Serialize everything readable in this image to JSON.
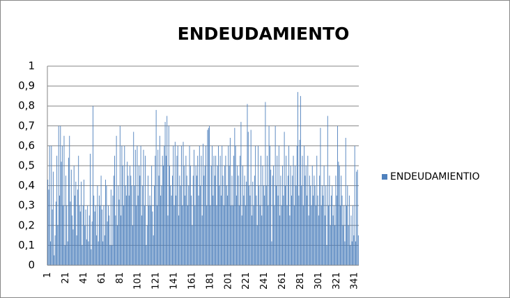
{
  "chart_data": {
    "type": "bar",
    "title": "ENDEUDAMIENTO",
    "categories": [
      "1",
      null,
      null,
      null,
      null,
      null,
      null,
      null,
      null,
      null,
      null,
      null,
      null,
      null,
      null,
      null,
      null,
      null,
      null,
      null,
      "21",
      null,
      null,
      null,
      null,
      null,
      null,
      null,
      null,
      null,
      null,
      null,
      null,
      null,
      null,
      null,
      null,
      null,
      null,
      null,
      "41",
      null,
      null,
      null,
      null,
      null,
      null,
      null,
      null,
      null,
      null,
      null,
      null,
      null,
      null,
      null,
      null,
      null,
      null,
      null,
      "61",
      null,
      null,
      null,
      null,
      null,
      null,
      null,
      null,
      null,
      null,
      null,
      null,
      null,
      null,
      null,
      null,
      null,
      null,
      null,
      "81",
      null,
      null,
      null,
      null,
      null,
      null,
      null,
      null,
      null,
      null,
      null,
      null,
      null,
      null,
      null,
      null,
      null,
      null,
      null,
      "101",
      null,
      null,
      null,
      null,
      null,
      null,
      null,
      null,
      null,
      null,
      null,
      null,
      null,
      null,
      null,
      null,
      null,
      null,
      null,
      "121",
      null,
      null,
      null,
      null,
      null,
      null,
      null,
      null,
      null,
      null,
      null,
      null,
      null,
      null,
      null,
      null,
      null,
      null,
      null,
      "141",
      null,
      null,
      null,
      null,
      null,
      null,
      null,
      null,
      null,
      null,
      null,
      null,
      null,
      null,
      null,
      null,
      null,
      null,
      null,
      "161",
      null,
      null,
      null,
      null,
      null,
      null,
      null,
      null,
      null,
      null,
      null,
      null,
      null,
      null,
      null,
      null,
      null,
      null,
      null,
      "181",
      null,
      null,
      null,
      null,
      null,
      null,
      null,
      null,
      null,
      null,
      null,
      null,
      null,
      null,
      null,
      null,
      null,
      null,
      null,
      "201",
      null,
      null,
      null,
      null,
      null,
      null,
      null,
      null,
      null,
      null,
      null,
      null,
      null,
      null,
      null,
      null,
      null,
      null,
      null,
      "221",
      null,
      null,
      null,
      null,
      null,
      null,
      null,
      null,
      null,
      null,
      null,
      null,
      null,
      null,
      null,
      null,
      null,
      null,
      null,
      "241",
      null,
      null,
      null,
      null,
      null,
      null,
      null,
      null,
      null,
      null,
      null,
      null,
      null,
      null,
      null,
      null,
      null,
      null,
      null,
      "261",
      null,
      null,
      null,
      null,
      null,
      null,
      null,
      null,
      null,
      null,
      null,
      null,
      null,
      null,
      null,
      null,
      null,
      null,
      null,
      "281",
      null,
      null,
      null,
      null,
      null,
      null,
      null,
      null,
      null,
      null,
      null,
      null,
      null,
      null,
      null,
      null,
      null,
      null,
      null,
      "301",
      null,
      null,
      null,
      null,
      null,
      null,
      null,
      null,
      null,
      null,
      null,
      null,
      null,
      null,
      null,
      null,
      null,
      null,
      null,
      "321",
      null,
      null,
      null,
      null,
      null,
      null,
      null,
      null,
      null,
      null,
      null,
      null,
      null,
      null,
      null,
      null,
      null,
      null,
      null,
      "341",
      null,
      null,
      null,
      null
    ],
    "series": [
      {
        "name": "ENDEUDAMIENTIO",
        "color": "#4f81bd",
        "values": [
          0.43,
          0.38,
          0.6,
          0.12,
          0.6,
          0.28,
          0.47,
          0.05,
          0.15,
          0.32,
          0.55,
          0.2,
          0.7,
          0.35,
          0.7,
          0.52,
          0.6,
          0.3,
          0.65,
          0.1,
          0.45,
          0.3,
          0.12,
          0.54,
          0.65,
          0.32,
          0.48,
          0.25,
          0.18,
          0.5,
          0.35,
          0.42,
          0.15,
          0.38,
          0.55,
          0.3,
          0.27,
          0.42,
          0.1,
          0.3,
          0.43,
          0.2,
          0.28,
          0.13,
          0.3,
          0.12,
          0.25,
          0.56,
          0.08,
          0.22,
          0.8,
          0.35,
          0.27,
          0.3,
          0.15,
          0.4,
          0.12,
          0.35,
          0.3,
          0.45,
          0.28,
          0.12,
          0.3,
          0.15,
          0.43,
          0.4,
          0.22,
          0.3,
          0.25,
          0.1,
          0.38,
          0.1,
          0.35,
          0.45,
          0.55,
          0.25,
          0.65,
          0.2,
          0.4,
          0.33,
          0.7,
          0.25,
          0.6,
          0.5,
          0.3,
          0.6,
          0.4,
          0.35,
          0.52,
          0.45,
          0.35,
          0.5,
          0.45,
          0.4,
          0.2,
          0.67,
          0.4,
          0.58,
          0.3,
          0.6,
          0.35,
          0.5,
          0.45,
          0.6,
          0.25,
          0.4,
          0.58,
          0.3,
          0.55,
          0.1,
          0.2,
          0.45,
          0.3,
          0.35,
          0.3,
          0.5,
          0.27,
          0.15,
          0.4,
          0.55,
          0.78,
          0.3,
          0.58,
          0.45,
          0.65,
          0.35,
          0.4,
          0.55,
          0.5,
          0.6,
          0.72,
          0.55,
          0.75,
          0.25,
          0.7,
          0.5,
          0.4,
          0.35,
          0.45,
          0.6,
          0.3,
          0.62,
          0.35,
          0.55,
          0.6,
          0.25,
          0.45,
          0.4,
          0.6,
          0.3,
          0.62,
          0.5,
          0.35,
          0.55,
          0.45,
          0.3,
          0.4,
          0.6,
          0.5,
          0.35,
          0.2,
          0.45,
          0.58,
          0.3,
          0.5,
          0.45,
          0.55,
          0.35,
          0.6,
          0.4,
          0.55,
          0.25,
          0.61,
          0.45,
          0.5,
          0.6,
          0.3,
          0.68,
          0.69,
          0.7,
          0.3,
          0.5,
          0.6,
          0.35,
          0.55,
          0.45,
          0.55,
          0.3,
          0.5,
          0.6,
          0.4,
          0.55,
          0.35,
          0.6,
          0.45,
          0.3,
          0.5,
          0.55,
          0.4,
          0.35,
          0.6,
          0.5,
          0.64,
          0.3,
          0.45,
          0.3,
          0.55,
          0.69,
          0.6,
          0.35,
          0.5,
          0.45,
          0.3,
          0.55,
          0.72,
          0.25,
          0.5,
          0.35,
          0.45,
          0.3,
          0.42,
          0.81,
          0.67,
          0.4,
          0.35,
          0.68,
          0.25,
          0.42,
          0.3,
          0.45,
          0.6,
          0.35,
          0.2,
          0.6,
          0.4,
          0.3,
          0.55,
          0.25,
          0.5,
          0.4,
          0.35,
          0.82,
          0.4,
          0.55,
          0.3,
          0.7,
          0.6,
          0.48,
          0.12,
          0.45,
          0.5,
          0.3,
          0.7,
          0.4,
          0.55,
          0.35,
          0.6,
          0.25,
          0.45,
          0.3,
          0.5,
          0.35,
          0.67,
          0.4,
          0.55,
          0.3,
          0.45,
          0.6,
          0.25,
          0.5,
          0.35,
          0.45,
          0.55,
          0.3,
          0.5,
          0.4,
          0.6,
          0.87,
          0.35,
          0.63,
          0.85,
          0.4,
          0.55,
          0.3,
          0.6,
          0.45,
          0.5,
          0.35,
          0.55,
          0.25,
          0.45,
          0.4,
          0.3,
          0.5,
          0.35,
          0.45,
          0.4,
          0.3,
          0.55,
          0.35,
          0.25,
          0.45,
          0.69,
          0.3,
          0.4,
          0.35,
          0.5,
          0.25,
          0.4,
          0.1,
          0.75,
          0.3,
          0.45,
          0.2,
          0.35,
          0.4,
          0.25,
          0.3,
          0.2,
          0.45,
          0.35,
          0.7,
          0.52,
          0.5,
          0.3,
          0.45,
          0.35,
          0.2,
          0.3,
          0.12,
          0.64,
          0.3,
          0.4,
          0.2,
          0.35,
          0.1,
          0.25,
          0.12,
          0.3,
          0.15,
          0.6,
          0.12,
          0.47,
          0.48,
          0.15
        ]
      }
    ],
    "ylim": [
      0,
      1
    ],
    "yticks": [
      0,
      {
        "value": 0.1,
        "label": "0,1"
      },
      {
        "value": 0.2,
        "label": "0,2"
      },
      {
        "value": 0.3,
        "label": "0,3"
      },
      {
        "value": 0.4,
        "label": "0,4"
      },
      {
        "value": 0.5,
        "label": "0,5"
      },
      {
        "value": 0.6,
        "label": "0,6"
      },
      {
        "value": 0.7,
        "label": "0,7"
      },
      {
        "value": 0.8,
        "label": "0,8"
      },
      {
        "value": 0.9,
        "label": "0,9"
      },
      1
    ],
    "grid": true,
    "legend": "right"
  }
}
